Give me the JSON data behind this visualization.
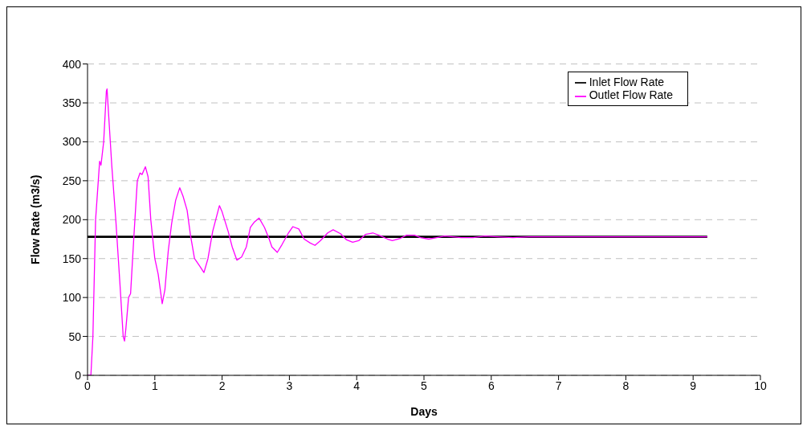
{
  "chart_data": {
    "type": "line",
    "xlabel": "Days",
    "ylabel": "Flow Rate (m3/s)",
    "xlim": [
      0,
      10
    ],
    "ylim": [
      0,
      400
    ],
    "xticks": [
      0,
      1,
      2,
      3,
      4,
      5,
      6,
      7,
      8,
      9,
      10
    ],
    "yticks": [
      0,
      50,
      100,
      150,
      200,
      250,
      300,
      350,
      400
    ],
    "grid": "y",
    "legend": "top right",
    "marker": "none",
    "line_style": "solid",
    "series": [
      {
        "name": "Inlet Flow Rate",
        "color": "#000000",
        "x": [
          0,
          9.21
        ],
        "values": [
          178,
          178
        ]
      },
      {
        "name": "Outlet Flow Rate",
        "color": "#ff00ff",
        "x": [
          0,
          0.05,
          0.08,
          0.12,
          0.18,
          0.2,
          0.24,
          0.28,
          0.29,
          0.31,
          0.36,
          0.42,
          0.48,
          0.53,
          0.55,
          0.57,
          0.61,
          0.64,
          0.69,
          0.74,
          0.78,
          0.81,
          0.86,
          0.9,
          0.94,
          1.0,
          1.05,
          1.11,
          1.15,
          1.2,
          1.25,
          1.31,
          1.37,
          1.42,
          1.48,
          1.53,
          1.59,
          1.67,
          1.73,
          1.79,
          1.86,
          1.96,
          2.0,
          2.09,
          2.15,
          2.22,
          2.29,
          2.36,
          2.42,
          2.48,
          2.55,
          2.63,
          2.7,
          2.74,
          2.82,
          2.89,
          2.98,
          3.05,
          3.14,
          3.22,
          3.31,
          3.38,
          3.46,
          3.57,
          3.65,
          3.76,
          3.85,
          3.94,
          4.03,
          4.13,
          4.24,
          4.36,
          4.46,
          4.53,
          4.65,
          4.74,
          4.86,
          4.95,
          5.07,
          5.19,
          5.31,
          5.43,
          5.55,
          5.73,
          5.91,
          6.09,
          6.32,
          6.56,
          7.04,
          7.52,
          9.21
        ],
        "values": [
          0,
          0,
          50,
          200,
          275,
          270,
          300,
          365,
          368,
          340,
          270,
          200,
          120,
          50,
          44,
          60,
          100,
          105,
          180,
          250,
          260,
          258,
          268,
          255,
          200,
          150,
          130,
          92,
          110,
          160,
          195,
          225,
          241,
          230,
          212,
          180,
          150,
          140,
          132,
          150,
          185,
          218,
          210,
          185,
          165,
          148,
          152,
          165,
          190,
          197,
          202,
          190,
          175,
          165,
          158,
          168,
          182,
          191,
          188,
          175,
          170,
          167,
          173,
          183,
          187,
          182,
          174,
          171,
          173,
          181,
          183,
          179,
          175,
          173,
          176,
          180,
          180,
          177,
          175,
          177,
          179,
          178,
          177,
          177,
          179,
          178,
          177,
          178,
          178,
          178,
          178
        ]
      }
    ]
  }
}
